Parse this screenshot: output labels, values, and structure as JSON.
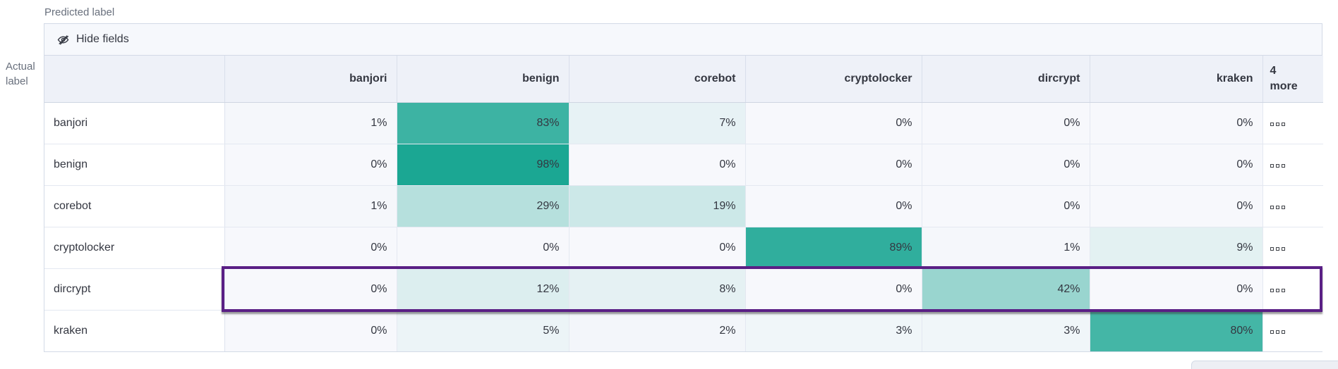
{
  "axes": {
    "predicted": "Predicted label",
    "actual": "Actual label"
  },
  "toolbar": {
    "hide_fields": "Hide fields",
    "icon": "eye-closed-icon"
  },
  "matrix": {
    "columns": [
      "banjori",
      "benign",
      "corebot",
      "cryptolocker",
      "dircrypt",
      "kraken"
    ],
    "more_column_label": "4 more",
    "value_suffix": "%",
    "rows": [
      {
        "label": "banjori",
        "values": [
          1,
          83,
          7,
          0,
          0,
          0
        ],
        "highlighted": false
      },
      {
        "label": "benign",
        "values": [
          0,
          98,
          0,
          0,
          0,
          0
        ],
        "highlighted": false
      },
      {
        "label": "corebot",
        "values": [
          1,
          29,
          19,
          0,
          0,
          0
        ],
        "highlighted": false
      },
      {
        "label": "cryptolocker",
        "values": [
          0,
          0,
          0,
          89,
          1,
          9
        ],
        "highlighted": false
      },
      {
        "label": "dircrypt",
        "values": [
          0,
          12,
          8,
          0,
          42,
          0
        ],
        "highlighted": true
      },
      {
        "label": "kraken",
        "values": [
          0,
          5,
          2,
          3,
          3,
          80
        ],
        "highlighted": false
      }
    ]
  },
  "chart_data": {
    "type": "heatmap",
    "x_label": "Predicted label",
    "y_label": "Actual label",
    "x_categories": [
      "banjori",
      "benign",
      "corebot",
      "cryptolocker",
      "dircrypt",
      "kraken"
    ],
    "y_categories": [
      "banjori",
      "benign",
      "corebot",
      "cryptolocker",
      "dircrypt",
      "kraken"
    ],
    "values_percent": [
      [
        1,
        83,
        7,
        0,
        0,
        0
      ],
      [
        0,
        98,
        0,
        0,
        0,
        0
      ],
      [
        1,
        29,
        19,
        0,
        0,
        0
      ],
      [
        0,
        0,
        0,
        89,
        1,
        9
      ],
      [
        0,
        12,
        8,
        0,
        42,
        0
      ],
      [
        0,
        5,
        2,
        3,
        3,
        80
      ]
    ],
    "legend_position": "none",
    "grid": true
  },
  "colors": {
    "heat_min": "#f7f8fc",
    "heat_max": "#17a591",
    "highlight_border": "#5a1f85",
    "header_bg": "#eef1f8",
    "toolbar_bg": "#f6f8fc",
    "outer_border": "#d3dae6",
    "text": "#343741",
    "muted_text": "#69707d"
  }
}
